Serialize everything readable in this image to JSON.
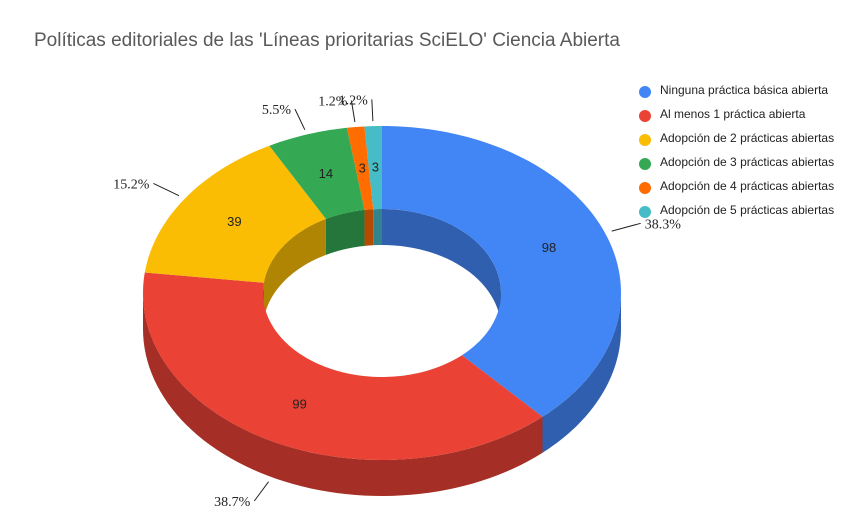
{
  "chart_data": {
    "type": "pie",
    "variant": "3d-donut",
    "title": "Políticas editoriales de las 'Líneas prioritarias SciELO' Ciencia Abierta",
    "slices": [
      {
        "name": "Ninguna práctica básica abierta",
        "value": 98,
        "percent_label": "38.3%",
        "color": "#4285f4",
        "side_color": "#2f5fae"
      },
      {
        "name": "Al menos 1 práctica abierta",
        "value": 99,
        "percent_label": "38.7%",
        "color": "#ea4335",
        "side_color": "#a52f26"
      },
      {
        "name": "Adopción de 2 prácticas abiertas",
        "value": 39,
        "percent_label": "15.2%",
        "color": "#fbbc04",
        "side_color": "#b08503"
      },
      {
        "name": "Adopción de 3 prácticas abiertas",
        "value": 14,
        "percent_label": "5.5%",
        "color": "#34a853",
        "side_color": "#24763a"
      },
      {
        "name": "Adopción de 4 prácticas abiertas",
        "value": 3,
        "percent_label": "1.2%",
        "color": "#ff6d01",
        "side_color": "#b34c01"
      },
      {
        "name": "Adopción de 5 prácticas abiertas",
        "value": 3,
        "percent_label": "1.2%",
        "color": "#46bdc6",
        "side_color": "#31848b"
      }
    ],
    "legend_position": "right"
  }
}
